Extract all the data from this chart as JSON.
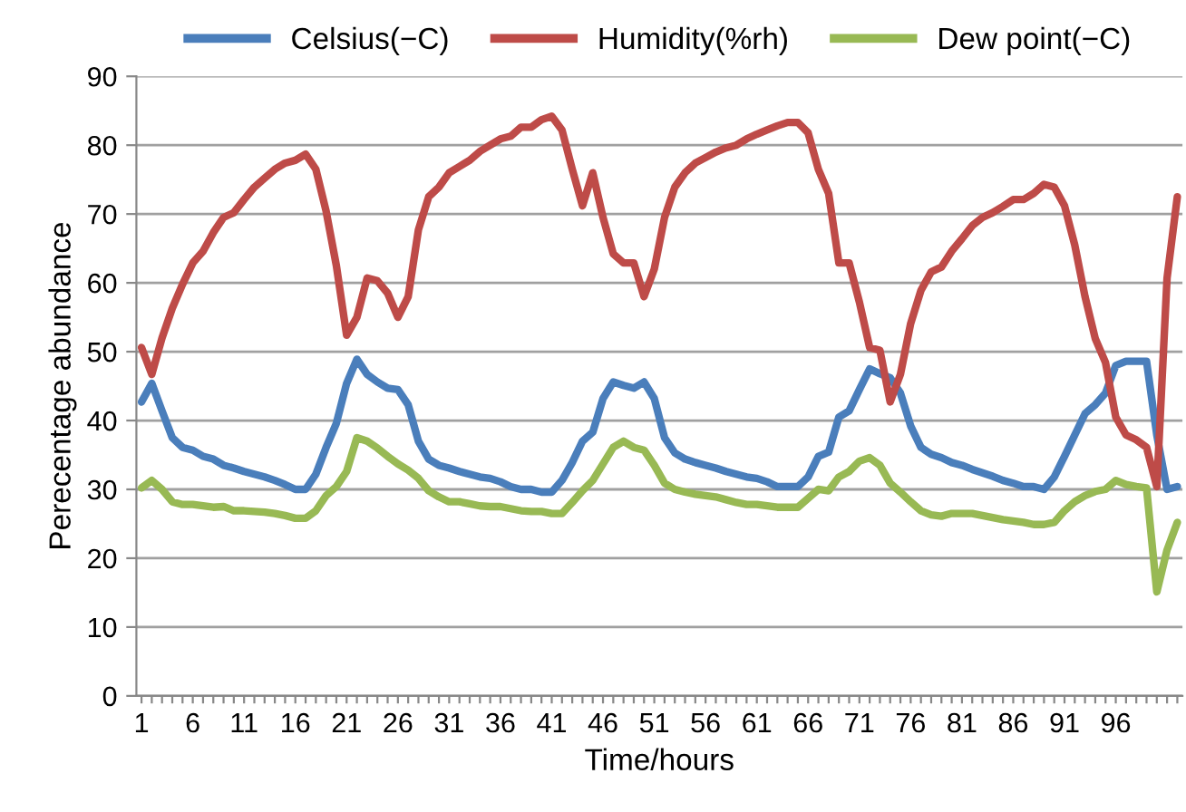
{
  "chart_data": {
    "type": "line",
    "xlabel": "Time/hours",
    "ylabel": "Perecentage abundance",
    "categories": [
      "1",
      null,
      null,
      null,
      null,
      "6",
      null,
      null,
      null,
      null,
      "11",
      null,
      null,
      null,
      null,
      "16",
      null,
      null,
      null,
      null,
      "21",
      null,
      null,
      null,
      null,
      "26",
      null,
      null,
      null,
      null,
      "31",
      null,
      null,
      null,
      null,
      "36",
      null,
      null,
      null,
      null,
      "41",
      null,
      null,
      null,
      null,
      "46",
      null,
      null,
      null,
      null,
      "51",
      null,
      null,
      null,
      null,
      "56",
      null,
      null,
      null,
      null,
      "61",
      null,
      null,
      null,
      null,
      "66",
      null,
      null,
      null,
      null,
      "71",
      null,
      null,
      null,
      null,
      "76",
      null,
      null,
      null,
      null,
      "81",
      null,
      null,
      null,
      null,
      "86",
      null,
      null,
      null,
      null,
      "91",
      null,
      null,
      null,
      null,
      "96",
      null,
      null,
      null,
      null,
      null,
      null
    ],
    "series": [
      {
        "name": "Celsius(−C)",
        "color": "#4a7ebb",
        "values": [
          42.7,
          45.4,
          41.4,
          37.5,
          36.1,
          35.7,
          34.8,
          34.4,
          33.5,
          33.1,
          32.6,
          32.2,
          31.8,
          31.3,
          30.7,
          30,
          30,
          32.2,
          36.1,
          39.6,
          45.4,
          48.9,
          46.7,
          45.6,
          44.7,
          44.5,
          42.3,
          37,
          34.4,
          33.5,
          33.1,
          32.6,
          32.2,
          31.8,
          31.6,
          31.1,
          30.4,
          30,
          30,
          29.6,
          29.6,
          31.3,
          33.9,
          37,
          38.3,
          43.2,
          45.6,
          45.1,
          44.7,
          45.6,
          43.2,
          37.5,
          35.3,
          34.4,
          33.9,
          33.5,
          33.1,
          32.6,
          32.2,
          31.8,
          31.6,
          31.1,
          30.4,
          30.4,
          30.4,
          31.8,
          34.8,
          35.4,
          40.5,
          41.4,
          44.5,
          47.5,
          46.8,
          46.2,
          44,
          39.2,
          36.1,
          35.1,
          34.6,
          33.9,
          33.5,
          32.9,
          32.4,
          31.9,
          31.3,
          30.9,
          30.4,
          30.4,
          30,
          31.8,
          34.8,
          37.9,
          41,
          42.3,
          44,
          48,
          48.6,
          48.6,
          48.6,
          37.9,
          30,
          30.4
        ]
      },
      {
        "name": "Humidity(%rh)",
        "color": "#be4b48",
        "values": [
          50.6,
          46.7,
          52,
          56.3,
          59.8,
          62.9,
          64.6,
          67.3,
          69.5,
          70.2,
          72.1,
          73.9,
          75.2,
          76.5,
          77.4,
          77.8,
          78.7,
          76.5,
          70.4,
          62.5,
          52.4,
          55,
          60.7,
          60.3,
          58.5,
          55,
          58,
          67.7,
          72.5,
          73.9,
          76,
          76.9,
          77.8,
          79.1,
          80,
          80.9,
          81.3,
          82.6,
          82.6,
          83.7,
          84.2,
          82.2,
          76.5,
          71.2,
          76,
          69.5,
          64.2,
          62.9,
          62.9,
          58,
          62,
          69.5,
          73.9,
          76,
          77.4,
          78.2,
          79,
          79.6,
          80,
          80.9,
          81.6,
          82.2,
          82.8,
          83.3,
          83.3,
          81.8,
          76.5,
          73,
          62.9,
          62.9,
          57.2,
          50.6,
          50.2,
          42.7,
          46.7,
          54.1,
          58.9,
          61.6,
          62.3,
          64.6,
          66.4,
          68.3,
          69.5,
          70.2,
          71.1,
          72.1,
          72.1,
          73,
          74.3,
          73.9,
          71.2,
          65.5,
          58,
          51.9,
          48.4,
          40.5,
          37.9,
          37.2,
          36.1,
          30.4,
          60.7,
          72.5
        ]
      },
      {
        "name": "Dew point(−C)",
        "color": "#98b954",
        "values": [
          30.2,
          31.3,
          30,
          28.2,
          27.8,
          27.8,
          27.6,
          27.4,
          27.5,
          26.9,
          26.9,
          26.8,
          26.7,
          26.5,
          26.2,
          25.8,
          25.8,
          26.9,
          29.1,
          30.4,
          32.6,
          37.5,
          37,
          36,
          34.8,
          33.7,
          32.8,
          31.6,
          29.8,
          28.9,
          28.2,
          28.2,
          27.9,
          27.6,
          27.5,
          27.5,
          27.2,
          26.9,
          26.8,
          26.8,
          26.5,
          26.5,
          28.1,
          29.8,
          31.3,
          33.7,
          36.1,
          37,
          36.1,
          35.7,
          33.5,
          30.9,
          30,
          29.6,
          29.3,
          29.1,
          28.9,
          28.5,
          28.1,
          27.8,
          27.8,
          27.6,
          27.4,
          27.4,
          27.4,
          28.7,
          30,
          29.8,
          31.8,
          32.6,
          34.1,
          34.6,
          33.5,
          30.9,
          29.6,
          28.2,
          26.9,
          26.3,
          26.1,
          26.5,
          26.5,
          26.5,
          26.2,
          25.9,
          25.6,
          25.4,
          25.2,
          24.9,
          24.9,
          25.2,
          26.9,
          28.2,
          29.1,
          29.7,
          30,
          31.3,
          30.7,
          30.4,
          30.2,
          15.1,
          21.2,
          25.2
        ]
      }
    ],
    "ylim": [
      0,
      90
    ],
    "yticks": [
      0,
      10,
      20,
      30,
      40,
      50,
      60,
      70,
      80,
      90
    ],
    "grid": "y",
    "legend": "top",
    "marker": "none",
    "line_style": "solid"
  }
}
